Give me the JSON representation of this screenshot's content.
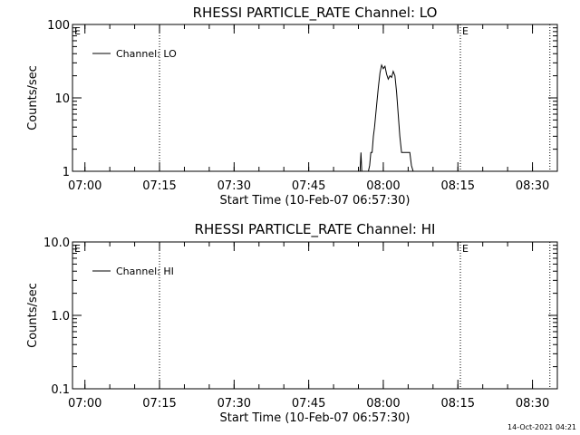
{
  "chart_data": [
    {
      "type": "line",
      "title": "RHESSI PARTICLE_RATE Channel: LO",
      "xlabel": "Start Time (10-Feb-07 06:57:30)",
      "ylabel": "Counts/sec",
      "y_scale": "log",
      "ylim": [
        1,
        100
      ],
      "y_ticks": [
        1,
        10,
        100
      ],
      "y_tick_labels": [
        "1",
        "10",
        "100"
      ],
      "x_range": [
        "06:57:30",
        "08:35:00"
      ],
      "x_ticks": [
        "07:00",
        "07:15",
        "07:30",
        "07:45",
        "08:00",
        "08:15",
        "08:30"
      ],
      "grid": false,
      "legend": {
        "placement": "top-left",
        "entries": [
          "Channel: LO"
        ]
      },
      "markers": [
        {
          "time": "07:15:00",
          "label": ""
        },
        {
          "time": "08:15:30",
          "label": "E"
        },
        {
          "time": "08:33:30",
          "label": ""
        }
      ],
      "corner_label": "E",
      "series": [
        {
          "name": "Channel: LO",
          "points": [
            [
              "07:55:20",
              1
            ],
            [
              "07:55:30",
              1.8
            ],
            [
              "07:55:40",
              1
            ],
            [
              "07:57:00",
              1
            ],
            [
              "07:57:15",
              1.2
            ],
            [
              "07:57:30",
              1.8
            ],
            [
              "07:57:45",
              1.8
            ],
            [
              "07:58:00",
              3
            ],
            [
              "07:58:15",
              4
            ],
            [
              "07:58:40",
              8
            ],
            [
              "07:59:00",
              14
            ],
            [
              "07:59:20",
              22
            ],
            [
              "07:59:40",
              28
            ],
            [
              "08:00:00",
              25
            ],
            [
              "08:00:20",
              27
            ],
            [
              "08:00:40",
              21
            ],
            [
              "08:01:00",
              18
            ],
            [
              "08:01:20",
              20
            ],
            [
              "08:01:40",
              19
            ],
            [
              "08:02:00",
              23
            ],
            [
              "08:02:20",
              20
            ],
            [
              "08:02:40",
              12
            ],
            [
              "08:03:00",
              6
            ],
            [
              "08:03:20",
              3
            ],
            [
              "08:03:40",
              1.8
            ],
            [
              "08:05:00",
              1.8
            ],
            [
              "08:05:20",
              1.8
            ],
            [
              "08:05:40",
              1.2
            ],
            [
              "08:06:00",
              1
            ]
          ]
        }
      ]
    },
    {
      "type": "line",
      "title": "RHESSI PARTICLE_RATE Channel: HI",
      "xlabel": "Start Time (10-Feb-07 06:57:30)",
      "ylabel": "Counts/sec",
      "y_scale": "log",
      "ylim": [
        0.1,
        10
      ],
      "y_ticks": [
        0.1,
        1,
        10
      ],
      "y_tick_labels": [
        "0.1",
        "1.0",
        "10.0"
      ],
      "x_range": [
        "06:57:30",
        "08:35:00"
      ],
      "x_ticks": [
        "07:00",
        "07:15",
        "07:30",
        "07:45",
        "08:00",
        "08:15",
        "08:30"
      ],
      "grid": false,
      "legend": {
        "placement": "top-left",
        "entries": [
          "Channel: HI"
        ]
      },
      "markers": [
        {
          "time": "07:15:00",
          "label": ""
        },
        {
          "time": "08:15:30",
          "label": "E"
        },
        {
          "time": "08:33:30",
          "label": ""
        }
      ],
      "corner_label": "E",
      "series": [
        {
          "name": "Channel: HI",
          "points": []
        }
      ]
    }
  ],
  "footer": {
    "timestamp": "14-Oct-2021 04:21"
  },
  "colors": {
    "background": "#ffffff",
    "foreground": "#000000"
  }
}
